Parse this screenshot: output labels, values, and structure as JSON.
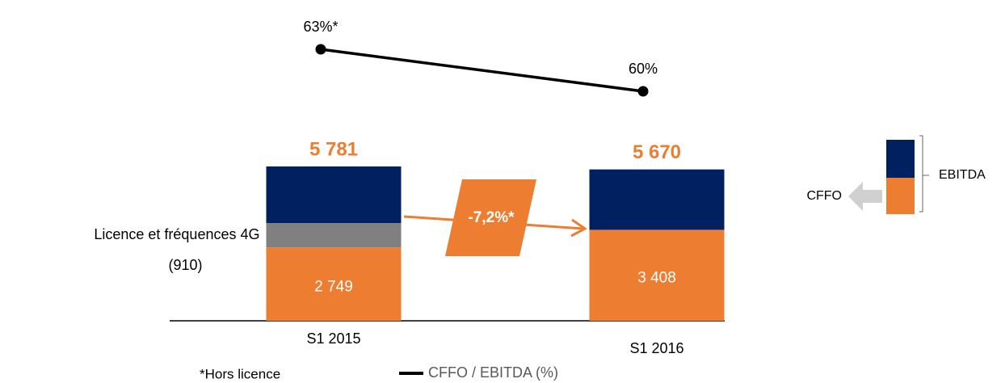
{
  "chart_data": {
    "type": "bar",
    "categories": [
      "S1 2015",
      "S1 2016"
    ],
    "series": [
      {
        "name": "CFFO",
        "color": "#ED7D31",
        "values": [
          2749,
          3408
        ],
        "value_labels": [
          "2 749",
          "3 408"
        ]
      },
      {
        "name": "Licence et fréquences 4G",
        "color": "#808080",
        "values": [
          910,
          null
        ],
        "value_labels": [
          "(910)",
          null
        ]
      },
      {
        "color": "#002060",
        "values": [
          2122,
          2262
        ]
      }
    ],
    "totals": [
      5781,
      5670
    ],
    "total_labels": [
      "5 781",
      "5 670"
    ],
    "line": {
      "name": "CFFO / EBITDA (%)",
      "color": "#000000",
      "values": [
        63,
        60
      ],
      "value_labels": [
        "63%*",
        "60%"
      ]
    },
    "change_label": "-7,2%*",
    "bracket_label": "EBITDA",
    "footnote": "*Hors licence"
  }
}
